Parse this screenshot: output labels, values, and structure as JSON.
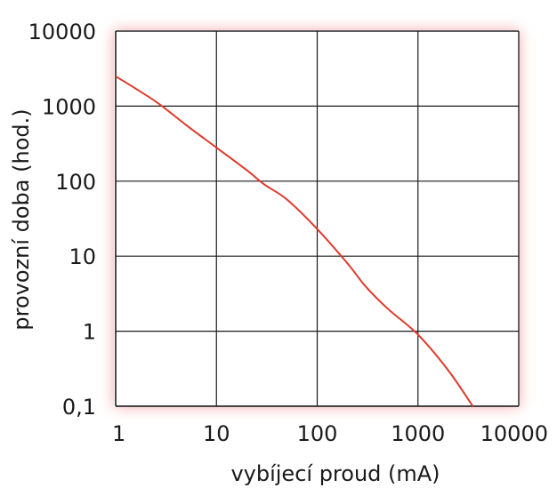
{
  "chart_data": {
    "type": "line",
    "title": "",
    "xlabel": "vybíjecí proud (mA)",
    "ylabel": "provozní doba (hod.)",
    "x_scale": "log",
    "y_scale": "log",
    "xlim": [
      1,
      10000
    ],
    "ylim": [
      0.1,
      10000
    ],
    "grid": true,
    "x_ticks": [
      {
        "value": 1,
        "label": "1"
      },
      {
        "value": 10,
        "label": "10"
      },
      {
        "value": 100,
        "label": "100"
      },
      {
        "value": 1000,
        "label": "1000"
      },
      {
        "value": 10000,
        "label": "10000"
      }
    ],
    "y_ticks": [
      {
        "value": 0.1,
        "label": "0,1"
      },
      {
        "value": 1,
        "label": "1"
      },
      {
        "value": 10,
        "label": "10"
      },
      {
        "value": 100,
        "label": "100"
      },
      {
        "value": 1000,
        "label": "1000"
      },
      {
        "value": 10000,
        "label": "10000"
      }
    ],
    "series": [
      {
        "color": "#e0392b",
        "x": [
          1,
          2.5,
          5,
          10,
          20,
          30,
          50,
          100,
          200,
          300,
          500,
          1000,
          2000,
          3500
        ],
        "y": [
          2500,
          1150,
          560,
          280,
          140,
          90,
          57,
          23,
          8,
          4,
          2,
          0.9,
          0.3,
          0.1
        ]
      }
    ],
    "colors": {
      "grid": "#1a1a1a",
      "glow": "#f3a0a0",
      "text": "#1a1a1a"
    }
  }
}
